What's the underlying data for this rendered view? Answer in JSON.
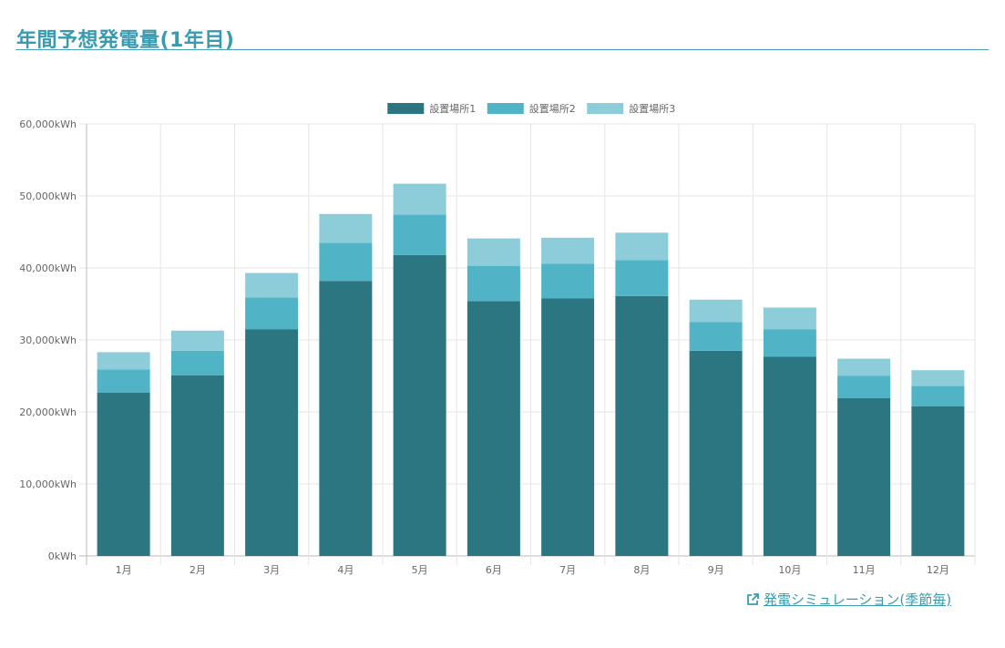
{
  "page": {
    "title": "年間予想発電量(1年目)",
    "link_label": "発電シミュレーション(季節毎)"
  },
  "colors": {
    "accent": "#3a9bb0",
    "series1": "#2b7680",
    "series2": "#50b3c6",
    "series3": "#8ccdd9",
    "grid": "#e6e6e6"
  },
  "chart_data": {
    "type": "bar",
    "stacked": true,
    "categories": [
      "1月",
      "2月",
      "3月",
      "4月",
      "5月",
      "6月",
      "7月",
      "8月",
      "9月",
      "10月",
      "11月",
      "12月"
    ],
    "series": [
      {
        "name": "設置場所1",
        "values": [
          22700,
          25100,
          31500,
          38200,
          41800,
          35400,
          35800,
          36100,
          28500,
          27700,
          21900,
          20800
        ]
      },
      {
        "name": "設置場所2",
        "values": [
          3200,
          3400,
          4400,
          5300,
          5600,
          4900,
          4800,
          5000,
          4000,
          3800,
          3100,
          2800
        ]
      },
      {
        "name": "設置場所3",
        "values": [
          2400,
          2800,
          3400,
          4000,
          4300,
          3800,
          3600,
          3800,
          3100,
          3000,
          2400,
          2200
        ]
      }
    ],
    "ylim": [
      0,
      60000
    ],
    "yticks": [
      0,
      10000,
      20000,
      30000,
      40000,
      50000,
      60000
    ],
    "ytick_labels": [
      "0kWh",
      "10,000kWh",
      "20,000kWh",
      "30,000kWh",
      "40,000kWh",
      "50,000kWh",
      "60,000kWh"
    ],
    "legend_position": "top-center",
    "grid": true
  }
}
